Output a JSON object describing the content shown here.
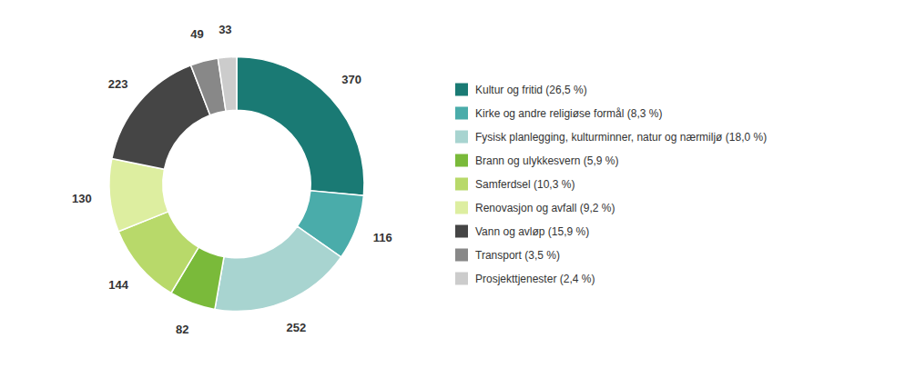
{
  "chart_data": {
    "type": "pie",
    "categories": [
      "Kultur og fritid (26,5 %)",
      "Kirke og andre religiøse formål (8,3 %)",
      "Fysisk planlegging, kulturminner, natur og nærmiljø (18,0 %)",
      "Brann og ulykkesvern (5,9 %)",
      "Samferdsel (10,3 %)",
      "Renovasjon og avfall (9,2 %)",
      "Vann og avløp (15,9 %)",
      "Transport (3,5 %)",
      "Prosjekttjenester (2,4 %)"
    ],
    "values": [
      370,
      116,
      252,
      82,
      144,
      130,
      223,
      49,
      33
    ],
    "colors": [
      "#1a7a74",
      "#4aacaa",
      "#a8d4d0",
      "#7aba3a",
      "#b8d96a",
      "#ddeea0",
      "#454545",
      "#888888",
      "#cccccc"
    ],
    "data_labels": true,
    "legend": "right"
  }
}
